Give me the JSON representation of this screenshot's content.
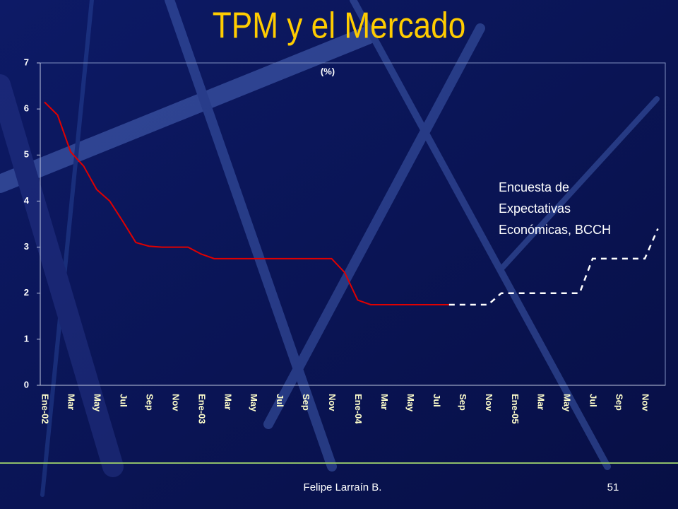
{
  "chart_data": {
    "type": "line",
    "title": "TPM y el Mercado",
    "ylabel": "(%)",
    "annotation": [
      "Encuesta de",
      "Expectativas",
      "Económicas, BCCH"
    ],
    "categories": [
      "Ene-02",
      null,
      "Mar",
      null,
      "May",
      null,
      "Jul",
      null,
      "Sep",
      null,
      "Nov",
      null,
      "Ene-03",
      null,
      "Mar",
      null,
      "May",
      null,
      "Jul",
      null,
      "Sep",
      null,
      "Nov",
      null,
      "Ene-04",
      null,
      "Mar",
      null,
      "May",
      null,
      "Jul",
      null,
      "Sep",
      null,
      "Nov",
      null,
      "Ene-05",
      null,
      "Mar",
      null,
      "May",
      null,
      "Jul",
      null,
      "Sep",
      null,
      "Nov",
      null
    ],
    "series": [
      {
        "color": "#e00000",
        "values": [
          6.15,
          5.87,
          5.07,
          4.76,
          4.25,
          4.0,
          3.56,
          3.1,
          3.02,
          3.0,
          3.0,
          3.0,
          2.85,
          2.75,
          2.75,
          2.75,
          2.75,
          2.75,
          2.75,
          2.75,
          2.75,
          2.75,
          2.75,
          2.45,
          1.85,
          1.75,
          1.75,
          1.75,
          1.75,
          1.75,
          1.75,
          1.75,
          null,
          null,
          null,
          null,
          null,
          null,
          null,
          null,
          null,
          null,
          null,
          null,
          null,
          null,
          null,
          null
        ]
      },
      {
        "color": "#ffffff",
        "dashed": true,
        "values": [
          null,
          null,
          null,
          null,
          null,
          null,
          null,
          null,
          null,
          null,
          null,
          null,
          null,
          null,
          null,
          null,
          null,
          null,
          null,
          null,
          null,
          null,
          null,
          null,
          null,
          null,
          null,
          null,
          null,
          null,
          null,
          1.75,
          1.75,
          1.75,
          1.75,
          2.0,
          2.0,
          2.0,
          2.0,
          2.0,
          2.0,
          2.0,
          2.75,
          2.75,
          2.75,
          2.75,
          2.75,
          3.4
        ]
      }
    ],
    "ylim": [
      0,
      7
    ],
    "yticks": [
      0,
      1,
      2,
      3,
      4,
      5,
      6,
      7
    ]
  },
  "footer": {
    "author": "Felipe Larraín B.",
    "page": "51"
  }
}
